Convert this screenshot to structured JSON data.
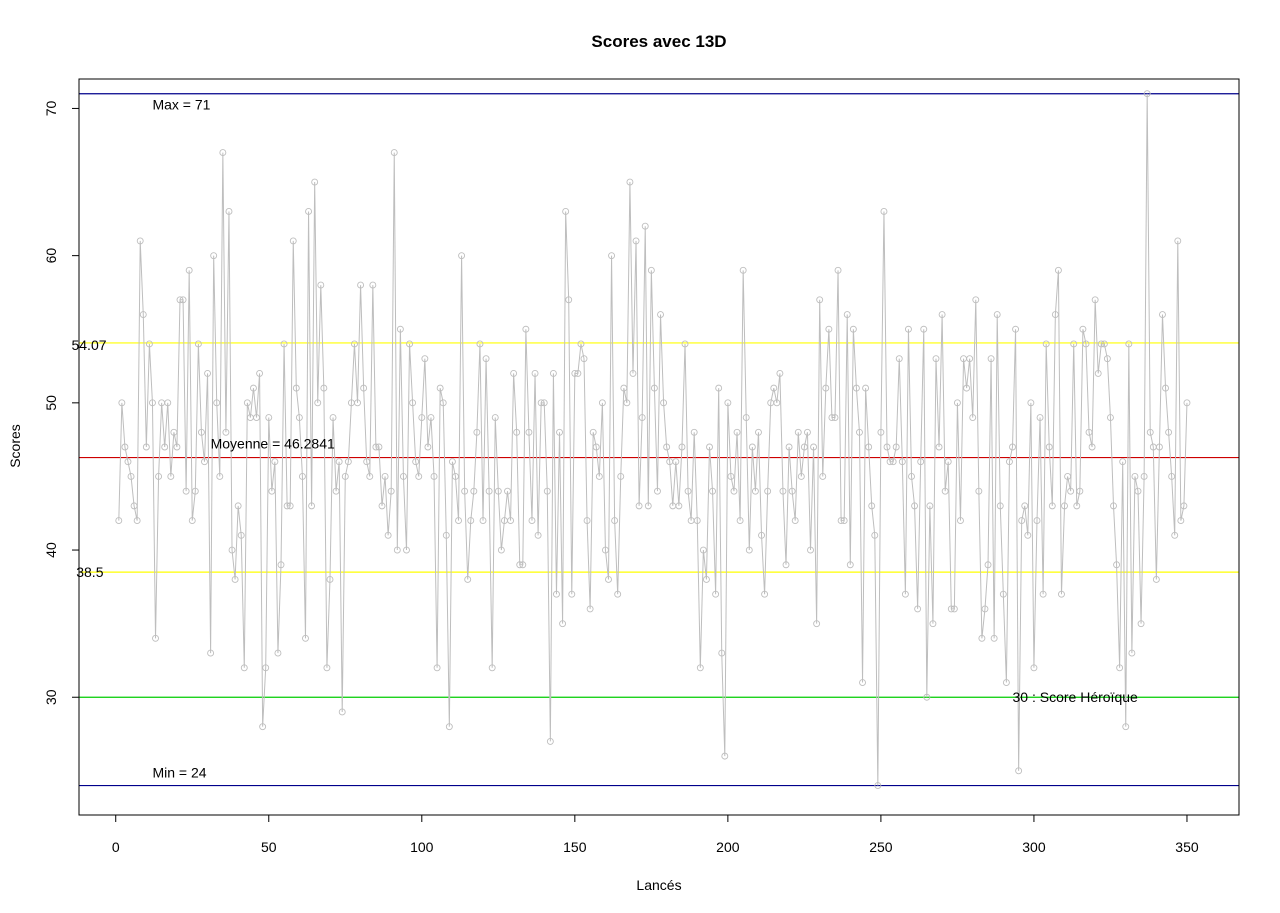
{
  "chart_data": {
    "type": "line",
    "title": "Scores avec 13D",
    "xlabel": "Lancés",
    "ylabel": "Scores",
    "xlim": [
      -12,
      367
    ],
    "ylim": [
      22,
      72
    ],
    "x_ticks": [
      0,
      50,
      100,
      150,
      200,
      250,
      300,
      350
    ],
    "y_ticks": [
      30,
      40,
      50,
      60,
      70
    ],
    "grid": false,
    "series": [
      {
        "color": "#bebebe",
        "marker": "open-circle",
        "values": [
          42,
          50,
          47,
          46,
          45,
          43,
          42,
          61,
          56,
          47,
          54,
          50,
          34,
          45,
          50,
          47,
          50,
          45,
          48,
          47,
          57,
          57,
          44,
          59,
          42,
          44,
          54,
          48,
          46,
          52,
          33,
          60,
          50,
          45,
          67,
          48,
          63,
          40,
          38,
          43,
          41,
          32,
          50,
          49,
          51,
          49,
          52,
          28,
          32,
          49,
          44,
          46,
          33,
          39,
          54,
          43,
          43,
          61,
          51,
          49,
          45,
          34,
          63,
          43,
          65,
          50,
          58,
          51,
          32,
          38,
          49,
          44,
          46,
          29,
          45,
          46,
          50,
          54,
          50,
          58,
          51,
          46,
          45,
          58,
          47,
          47,
          43,
          45,
          41,
          44,
          67,
          40,
          55,
          45,
          40,
          54,
          50,
          46,
          45,
          49,
          53,
          47,
          49,
          45,
          32,
          51,
          50,
          41,
          28,
          46,
          45,
          42,
          60,
          44,
          38,
          42,
          44,
          48,
          54,
          42,
          53,
          44,
          32,
          49,
          44,
          40,
          42,
          44,
          42,
          52,
          48,
          39,
          39,
          55,
          48,
          42,
          52,
          41,
          50,
          50,
          44,
          27,
          52,
          37,
          48,
          35,
          63,
          57,
          37,
          52,
          52,
          54,
          53,
          42,
          36,
          48,
          47,
          45,
          50,
          40,
          38,
          60,
          42,
          37,
          45,
          51,
          50,
          65,
          52,
          61,
          43,
          49,
          62,
          43,
          59,
          51,
          44,
          56,
          50,
          47,
          46,
          43,
          46,
          43,
          47,
          54,
          44,
          42,
          48,
          42,
          32,
          40,
          38,
          47,
          44,
          37,
          51,
          33,
          26,
          50,
          45,
          44,
          48,
          42,
          59,
          49,
          40,
          47,
          44,
          48,
          41,
          37,
          44,
          50,
          51,
          50,
          52,
          44,
          39,
          47,
          44,
          42,
          48,
          45,
          47,
          48,
          40,
          47,
          35,
          57,
          45,
          51,
          55,
          49,
          49,
          59,
          42,
          42,
          56,
          39,
          55,
          51,
          48,
          31,
          51,
          47,
          43,
          41,
          24,
          48,
          63,
          47,
          46,
          46,
          47,
          53,
          46,
          37,
          55,
          45,
          43,
          36,
          46,
          55,
          30,
          43,
          35,
          53,
          47,
          56,
          44,
          46,
          36,
          36,
          50,
          42,
          53,
          51,
          53,
          49,
          57,
          44,
          34,
          36,
          39,
          53,
          34,
          56,
          43,
          37,
          31,
          46,
          47,
          55,
          25,
          42,
          43,
          41,
          50,
          32,
          42,
          49,
          37,
          54,
          47,
          43,
          56,
          59,
          37,
          43,
          45,
          44,
          54,
          43,
          44,
          55,
          54,
          48,
          47,
          57,
          52,
          54,
          54,
          53,
          49,
          43,
          39,
          32,
          46,
          28,
          54,
          33,
          45,
          44,
          35,
          45,
          71,
          48,
          47,
          38,
          47,
          56,
          51,
          48,
          45,
          41,
          61,
          42,
          43,
          50
        ]
      }
    ],
    "reference_lines": [
      {
        "y": 71,
        "color": "#00008b",
        "label": "Max =  71"
      },
      {
        "y": 54.07,
        "color": "#ffff00",
        "label": "54.07"
      },
      {
        "y": 46.2841,
        "color": "#cd0000",
        "label": "Moyenne =  46.2841"
      },
      {
        "y": 38.5,
        "color": "#ffff00",
        "label": "38.5"
      },
      {
        "y": 30,
        "color": "#00cd00",
        "label": "30 : Score Héroïque"
      },
      {
        "y": 24,
        "color": "#00008b",
        "label": "Min =  24"
      }
    ]
  }
}
